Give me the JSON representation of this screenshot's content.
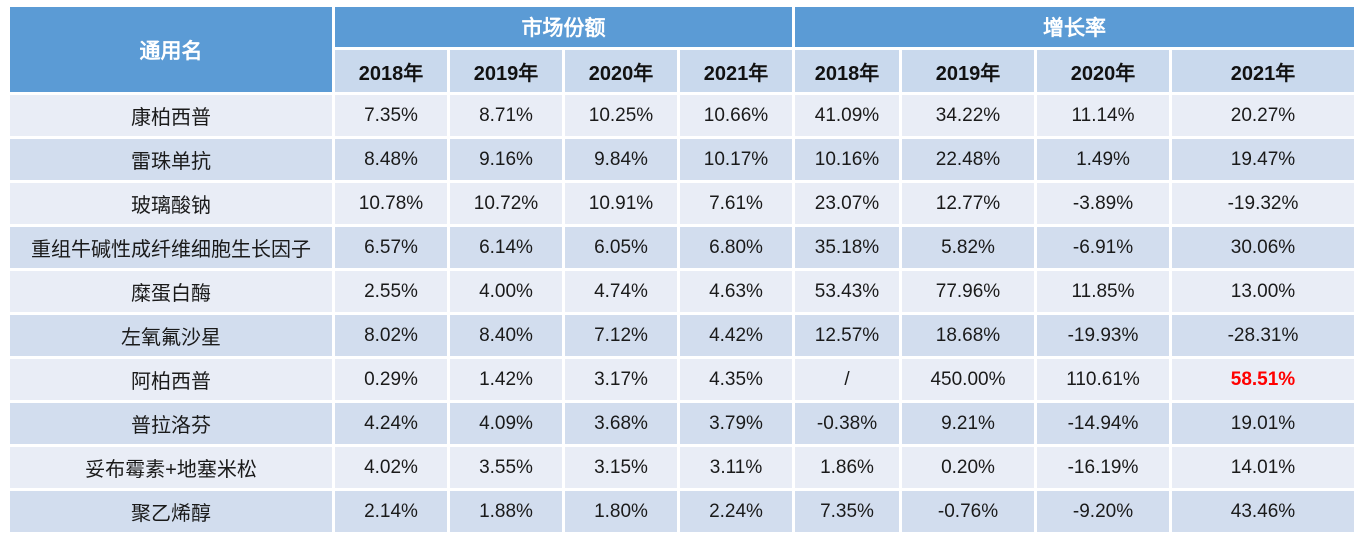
{
  "chart_data": {
    "type": "table",
    "name_column_header": "通用名",
    "groups": [
      {
        "label": "市场份额",
        "years": [
          "2018年",
          "2019年",
          "2020年",
          "2021年"
        ]
      },
      {
        "label": "增长率",
        "years": [
          "2018年",
          "2019年",
          "2020年",
          "2021年"
        ]
      }
    ],
    "rows": [
      {
        "name": "康柏西普",
        "market_share": [
          "7.35%",
          "8.71%",
          "10.25%",
          "10.66%"
        ],
        "growth": [
          "41.09%",
          "34.22%",
          "11.14%",
          "20.27%"
        ]
      },
      {
        "name": "雷珠单抗",
        "market_share": [
          "8.48%",
          "9.16%",
          "9.84%",
          "10.17%"
        ],
        "growth": [
          "10.16%",
          "22.48%",
          "1.49%",
          "19.47%"
        ]
      },
      {
        "name": "玻璃酸钠",
        "market_share": [
          "10.78%",
          "10.72%",
          "10.91%",
          "7.61%"
        ],
        "growth": [
          "23.07%",
          "12.77%",
          "-3.89%",
          "-19.32%"
        ]
      },
      {
        "name": "重组牛碱性成纤维细胞生长因子",
        "market_share": [
          "6.57%",
          "6.14%",
          "6.05%",
          "6.80%"
        ],
        "growth": [
          "35.18%",
          "5.82%",
          "-6.91%",
          "30.06%"
        ]
      },
      {
        "name": "糜蛋白酶",
        "market_share": [
          "2.55%",
          "4.00%",
          "4.74%",
          "4.63%"
        ],
        "growth": [
          "53.43%",
          "77.96%",
          "11.85%",
          "13.00%"
        ]
      },
      {
        "name": "左氧氟沙星",
        "market_share": [
          "8.02%",
          "8.40%",
          "7.12%",
          "4.42%"
        ],
        "growth": [
          "12.57%",
          "18.68%",
          "-19.93%",
          "-28.31%"
        ]
      },
      {
        "name": "阿柏西普",
        "market_share": [
          "0.29%",
          "1.42%",
          "3.17%",
          "4.35%"
        ],
        "growth": [
          "/",
          "450.00%",
          "110.61%",
          "58.51%"
        ]
      },
      {
        "name": "普拉洛芬",
        "market_share": [
          "4.24%",
          "4.09%",
          "3.68%",
          "3.79%"
        ],
        "growth": [
          "-0.38%",
          "9.21%",
          "-14.94%",
          "19.01%"
        ]
      },
      {
        "name": "妥布霉素+地塞米松",
        "market_share": [
          "4.02%",
          "3.55%",
          "3.15%",
          "3.11%"
        ],
        "growth": [
          "1.86%",
          "0.20%",
          "-16.19%",
          "14.01%"
        ]
      },
      {
        "name": "聚乙烯醇",
        "market_share": [
          "2.14%",
          "1.88%",
          "1.80%",
          "2.24%"
        ],
        "growth": [
          "7.35%",
          "-0.76%",
          "-9.20%",
          "43.46%"
        ]
      }
    ],
    "highlight_cell": {
      "row_index": 6,
      "row_name": "阿柏西普",
      "group": "增长率",
      "year": "2021年",
      "value": "58.51%",
      "color": "#FF0000"
    },
    "no_data_marker": "/",
    "layout_hints": {
      "banded_rows": true,
      "grid": "white separators"
    }
  },
  "colors": {
    "header_bg": "#5B9BD5",
    "header_text": "#FFFFFF",
    "subheader_bg": "#C9D9ED",
    "row_odd_bg": "#E9EDF6",
    "row_even_bg": "#D2DDEE",
    "data_text": "#1A1A1A",
    "highlight_text": "#FF0000",
    "separator": "#FFFFFF"
  }
}
